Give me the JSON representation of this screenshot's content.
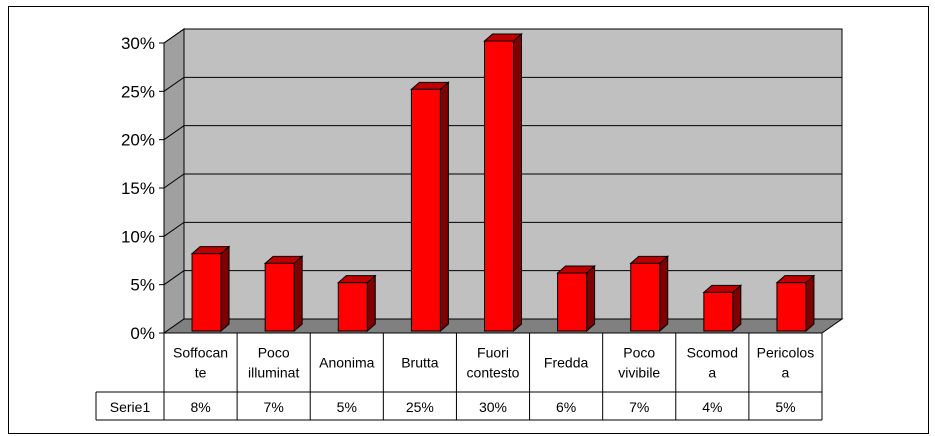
{
  "chart_data": {
    "type": "bar",
    "categories": [
      [
        "Soffocan",
        "te"
      ],
      [
        "Poco",
        "illuminat"
      ],
      [
        "Anonima"
      ],
      [
        "Brutta"
      ],
      [
        "Fuori",
        "contesto"
      ],
      [
        "Fredda"
      ],
      [
        "Poco",
        "vivibile"
      ],
      [
        "Scomod",
        "a"
      ],
      [
        "Pericolos",
        "a"
      ]
    ],
    "series": [
      {
        "name": "Serie1",
        "values": [
          8,
          7,
          5,
          25,
          30,
          6,
          7,
          4,
          5
        ],
        "labels": [
          "8%",
          "7%",
          "5%",
          "25%",
          "30%",
          "6%",
          "7%",
          "4%",
          "5%"
        ]
      }
    ],
    "y_ticks": [
      "0%",
      "5%",
      "10%",
      "15%",
      "20%",
      "25%",
      "30%"
    ],
    "ylim": [
      0,
      30
    ],
    "grid": true,
    "legend": "data-table",
    "colors": {
      "bar_front": "#ff0000",
      "bar_side": "#7f0000",
      "bar_top": "#c00000",
      "wall": "#c0c0c0",
      "floor": "#808080"
    }
  }
}
